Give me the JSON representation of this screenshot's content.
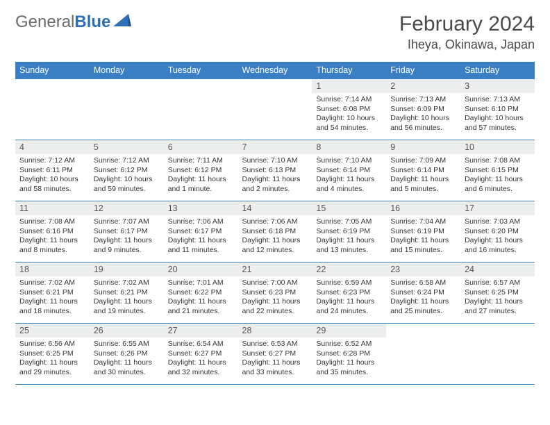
{
  "brand": {
    "general": "General",
    "blue": "Blue"
  },
  "title": "February 2024",
  "location": "Iheya, Okinawa, Japan",
  "colors": {
    "header_bg": "#3a7fc4",
    "header_text": "#ffffff",
    "daynum_bg": "#eceded",
    "border": "#3a7fc4",
    "logo_gray": "#6a6a6a",
    "logo_blue": "#2e6fb5"
  },
  "weekdays": [
    "Sunday",
    "Monday",
    "Tuesday",
    "Wednesday",
    "Thursday",
    "Friday",
    "Saturday"
  ],
  "weeks": [
    [
      null,
      null,
      null,
      null,
      {
        "n": "1",
        "sr": "7:14 AM",
        "ss": "6:08 PM",
        "dl": "10 hours and 54 minutes."
      },
      {
        "n": "2",
        "sr": "7:13 AM",
        "ss": "6:09 PM",
        "dl": "10 hours and 56 minutes."
      },
      {
        "n": "3",
        "sr": "7:13 AM",
        "ss": "6:10 PM",
        "dl": "10 hours and 57 minutes."
      }
    ],
    [
      {
        "n": "4",
        "sr": "7:12 AM",
        "ss": "6:11 PM",
        "dl": "10 hours and 58 minutes."
      },
      {
        "n": "5",
        "sr": "7:12 AM",
        "ss": "6:12 PM",
        "dl": "10 hours and 59 minutes."
      },
      {
        "n": "6",
        "sr": "7:11 AM",
        "ss": "6:12 PM",
        "dl": "11 hours and 1 minute."
      },
      {
        "n": "7",
        "sr": "7:10 AM",
        "ss": "6:13 PM",
        "dl": "11 hours and 2 minutes."
      },
      {
        "n": "8",
        "sr": "7:10 AM",
        "ss": "6:14 PM",
        "dl": "11 hours and 4 minutes."
      },
      {
        "n": "9",
        "sr": "7:09 AM",
        "ss": "6:14 PM",
        "dl": "11 hours and 5 minutes."
      },
      {
        "n": "10",
        "sr": "7:08 AM",
        "ss": "6:15 PM",
        "dl": "11 hours and 6 minutes."
      }
    ],
    [
      {
        "n": "11",
        "sr": "7:08 AM",
        "ss": "6:16 PM",
        "dl": "11 hours and 8 minutes."
      },
      {
        "n": "12",
        "sr": "7:07 AM",
        "ss": "6:17 PM",
        "dl": "11 hours and 9 minutes."
      },
      {
        "n": "13",
        "sr": "7:06 AM",
        "ss": "6:17 PM",
        "dl": "11 hours and 11 minutes."
      },
      {
        "n": "14",
        "sr": "7:06 AM",
        "ss": "6:18 PM",
        "dl": "11 hours and 12 minutes."
      },
      {
        "n": "15",
        "sr": "7:05 AM",
        "ss": "6:19 PM",
        "dl": "11 hours and 13 minutes."
      },
      {
        "n": "16",
        "sr": "7:04 AM",
        "ss": "6:19 PM",
        "dl": "11 hours and 15 minutes."
      },
      {
        "n": "17",
        "sr": "7:03 AM",
        "ss": "6:20 PM",
        "dl": "11 hours and 16 minutes."
      }
    ],
    [
      {
        "n": "18",
        "sr": "7:02 AM",
        "ss": "6:21 PM",
        "dl": "11 hours and 18 minutes."
      },
      {
        "n": "19",
        "sr": "7:02 AM",
        "ss": "6:21 PM",
        "dl": "11 hours and 19 minutes."
      },
      {
        "n": "20",
        "sr": "7:01 AM",
        "ss": "6:22 PM",
        "dl": "11 hours and 21 minutes."
      },
      {
        "n": "21",
        "sr": "7:00 AM",
        "ss": "6:23 PM",
        "dl": "11 hours and 22 minutes."
      },
      {
        "n": "22",
        "sr": "6:59 AM",
        "ss": "6:23 PM",
        "dl": "11 hours and 24 minutes."
      },
      {
        "n": "23",
        "sr": "6:58 AM",
        "ss": "6:24 PM",
        "dl": "11 hours and 25 minutes."
      },
      {
        "n": "24",
        "sr": "6:57 AM",
        "ss": "6:25 PM",
        "dl": "11 hours and 27 minutes."
      }
    ],
    [
      {
        "n": "25",
        "sr": "6:56 AM",
        "ss": "6:25 PM",
        "dl": "11 hours and 29 minutes."
      },
      {
        "n": "26",
        "sr": "6:55 AM",
        "ss": "6:26 PM",
        "dl": "11 hours and 30 minutes."
      },
      {
        "n": "27",
        "sr": "6:54 AM",
        "ss": "6:27 PM",
        "dl": "11 hours and 32 minutes."
      },
      {
        "n": "28",
        "sr": "6:53 AM",
        "ss": "6:27 PM",
        "dl": "11 hours and 33 minutes."
      },
      {
        "n": "29",
        "sr": "6:52 AM",
        "ss": "6:28 PM",
        "dl": "11 hours and 35 minutes."
      },
      null,
      null
    ]
  ],
  "labels": {
    "sunrise": "Sunrise: ",
    "sunset": "Sunset: ",
    "daylight": "Daylight: "
  }
}
